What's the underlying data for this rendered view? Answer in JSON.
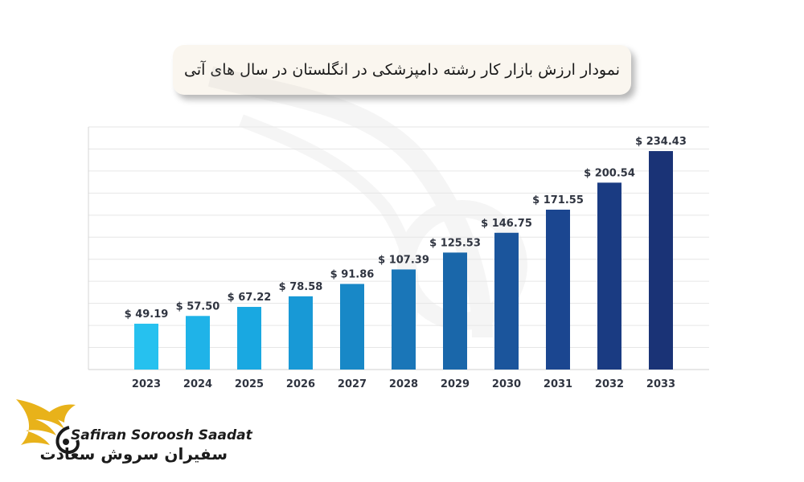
{
  "title": "نمودار ارزش بازار کار رشته دامپزشکی در انگلستان در سال های آتی",
  "brand": {
    "name_en": "Safiran Soroosh Saadat",
    "name_fa": "سفیران سروش سعادت",
    "logo_icon": "eagle-wing-logo-icon",
    "colors": {
      "wing": "#e8b21a",
      "text": "#1b1b1b"
    }
  },
  "chart_data": {
    "type": "bar",
    "title": "نمودار ارزش بازار کار رشته دامپزشکی در انگلستان در سال های آتی",
    "categories": [
      "2023",
      "2024",
      "2025",
      "2026",
      "2027",
      "2028",
      "2029",
      "2030",
      "2031",
      "2032",
      "2033"
    ],
    "values": [
      49.19,
      57.5,
      67.22,
      78.58,
      91.86,
      107.39,
      125.53,
      146.75,
      171.55,
      200.54,
      234.43
    ],
    "data_labels": [
      "$ 49.19",
      "$ 57.50",
      "$ 67.22",
      "$ 78.58",
      "$ 91.86",
      "$ 107.39",
      "$ 125.53",
      "$ 146.75",
      "$ 171.55",
      "$ 200.54",
      "$ 234.43"
    ],
    "xlabel": "",
    "ylabel": "",
    "ylim": [
      0,
      250
    ],
    "grid": true,
    "y_axis_labels_shown": false,
    "bar_colors": [
      "#26c1ef",
      "#1fb3e8",
      "#19a8e1",
      "#1899d6",
      "#1888c7",
      "#1a76b8",
      "#1a67aa",
      "#1b559c",
      "#1b4690",
      "#1a3b82",
      "#1a3376"
    ]
  }
}
